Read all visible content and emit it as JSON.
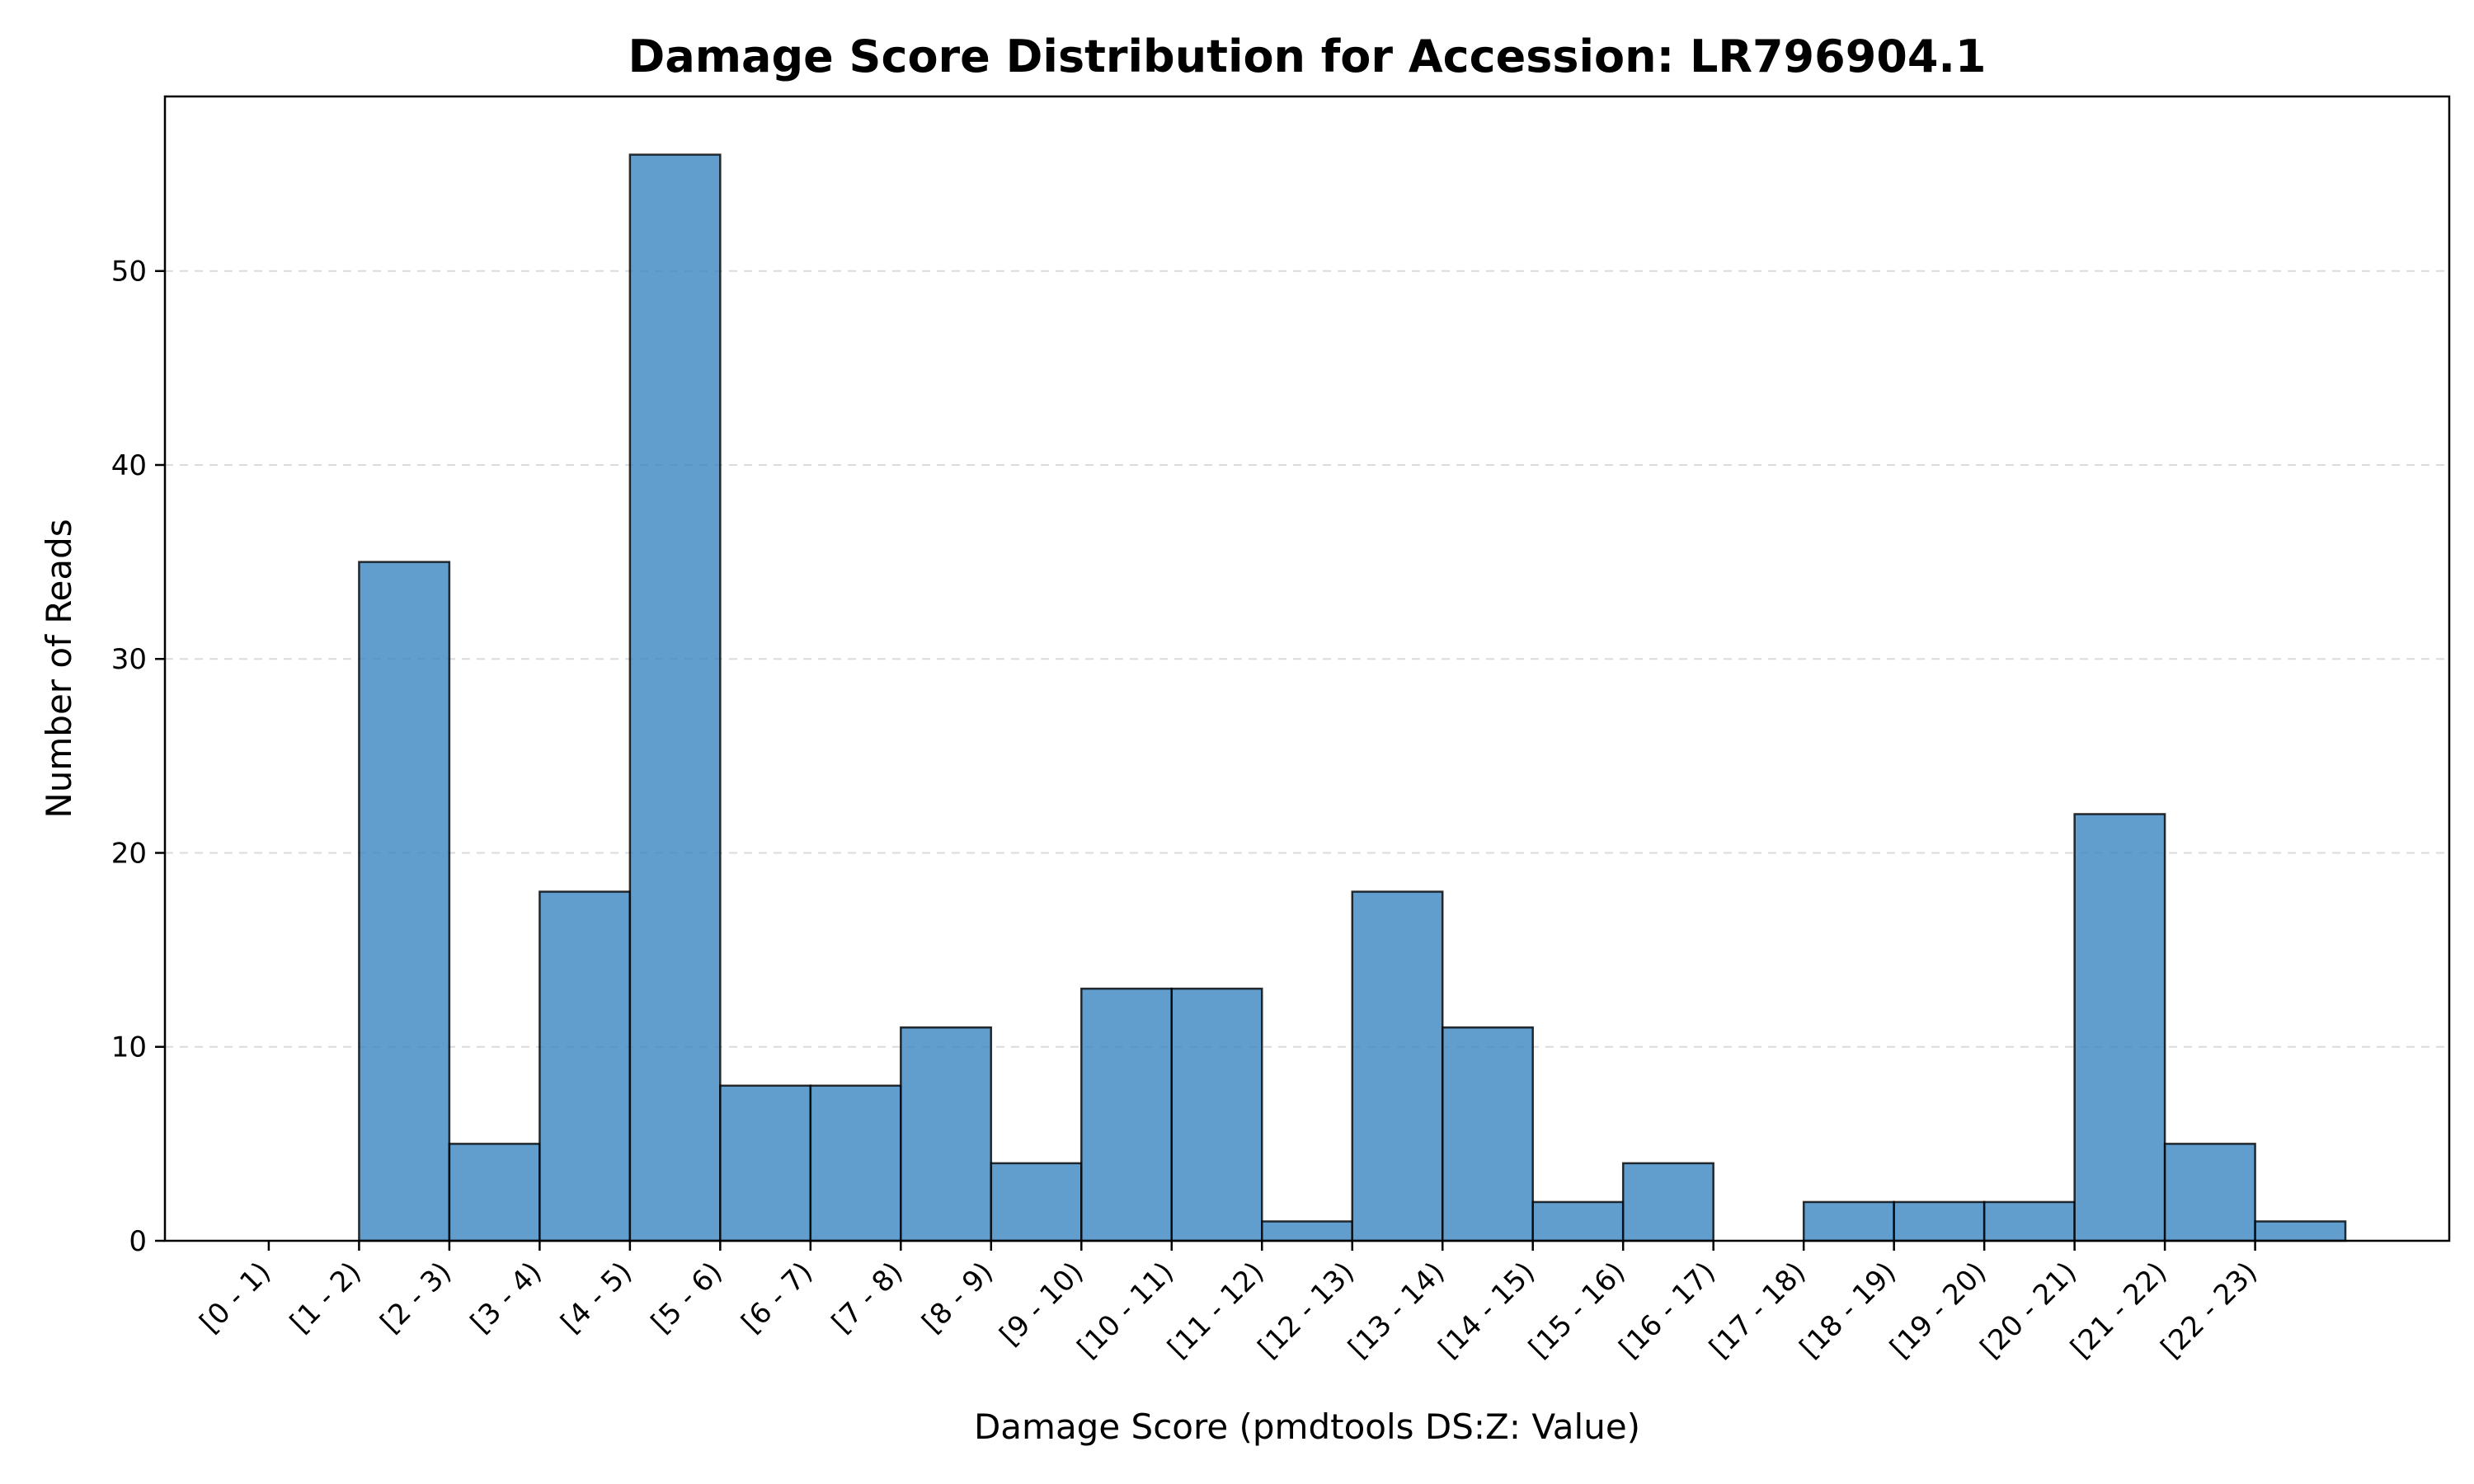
{
  "chart_data": {
    "type": "bar",
    "title": "Damage Score Distribution for Accession: LR796904.1",
    "xlabel": "Damage Score (pmdtools DS:Z: Value)",
    "ylabel": "Number of Reads",
    "categories": [
      "[0 - 1)",
      "[1 - 2)",
      "[2 - 3)",
      "[3 - 4)",
      "[4 - 5)",
      "[5 - 6)",
      "[6 - 7)",
      "[7 - 8)",
      "[8 - 9)",
      "[9 - 10)",
      "[10 - 11)",
      "[11 - 12)",
      "[12 - 13)",
      "[13 - 14)",
      "[14 - 15)",
      "[15 - 16)",
      "[16 - 17)",
      "[17 - 18)",
      "[18 - 19)",
      "[19 - 20)",
      "[20 - 21)",
      "[21 - 22)",
      "[22 - 23)"
    ],
    "bins": [
      0,
      1,
      2,
      3,
      4,
      5,
      6,
      7,
      8,
      9,
      10,
      11,
      12,
      13,
      14,
      15,
      16,
      17,
      18,
      19,
      20,
      21,
      22
    ],
    "values": [
      0,
      35,
      5,
      18,
      56,
      8,
      8,
      11,
      4,
      13,
      13,
      1,
      18,
      11,
      2,
      4,
      0,
      2,
      2,
      2,
      22,
      5,
      1
    ],
    "ylim": [
      0,
      59
    ],
    "xlim": [
      -1.15,
      24.15
    ],
    "yticks": [
      0,
      10,
      20,
      30,
      40,
      50
    ],
    "grid": "y-dashed",
    "bar_color": "#3a86c2",
    "edge_color": "#000000"
  }
}
